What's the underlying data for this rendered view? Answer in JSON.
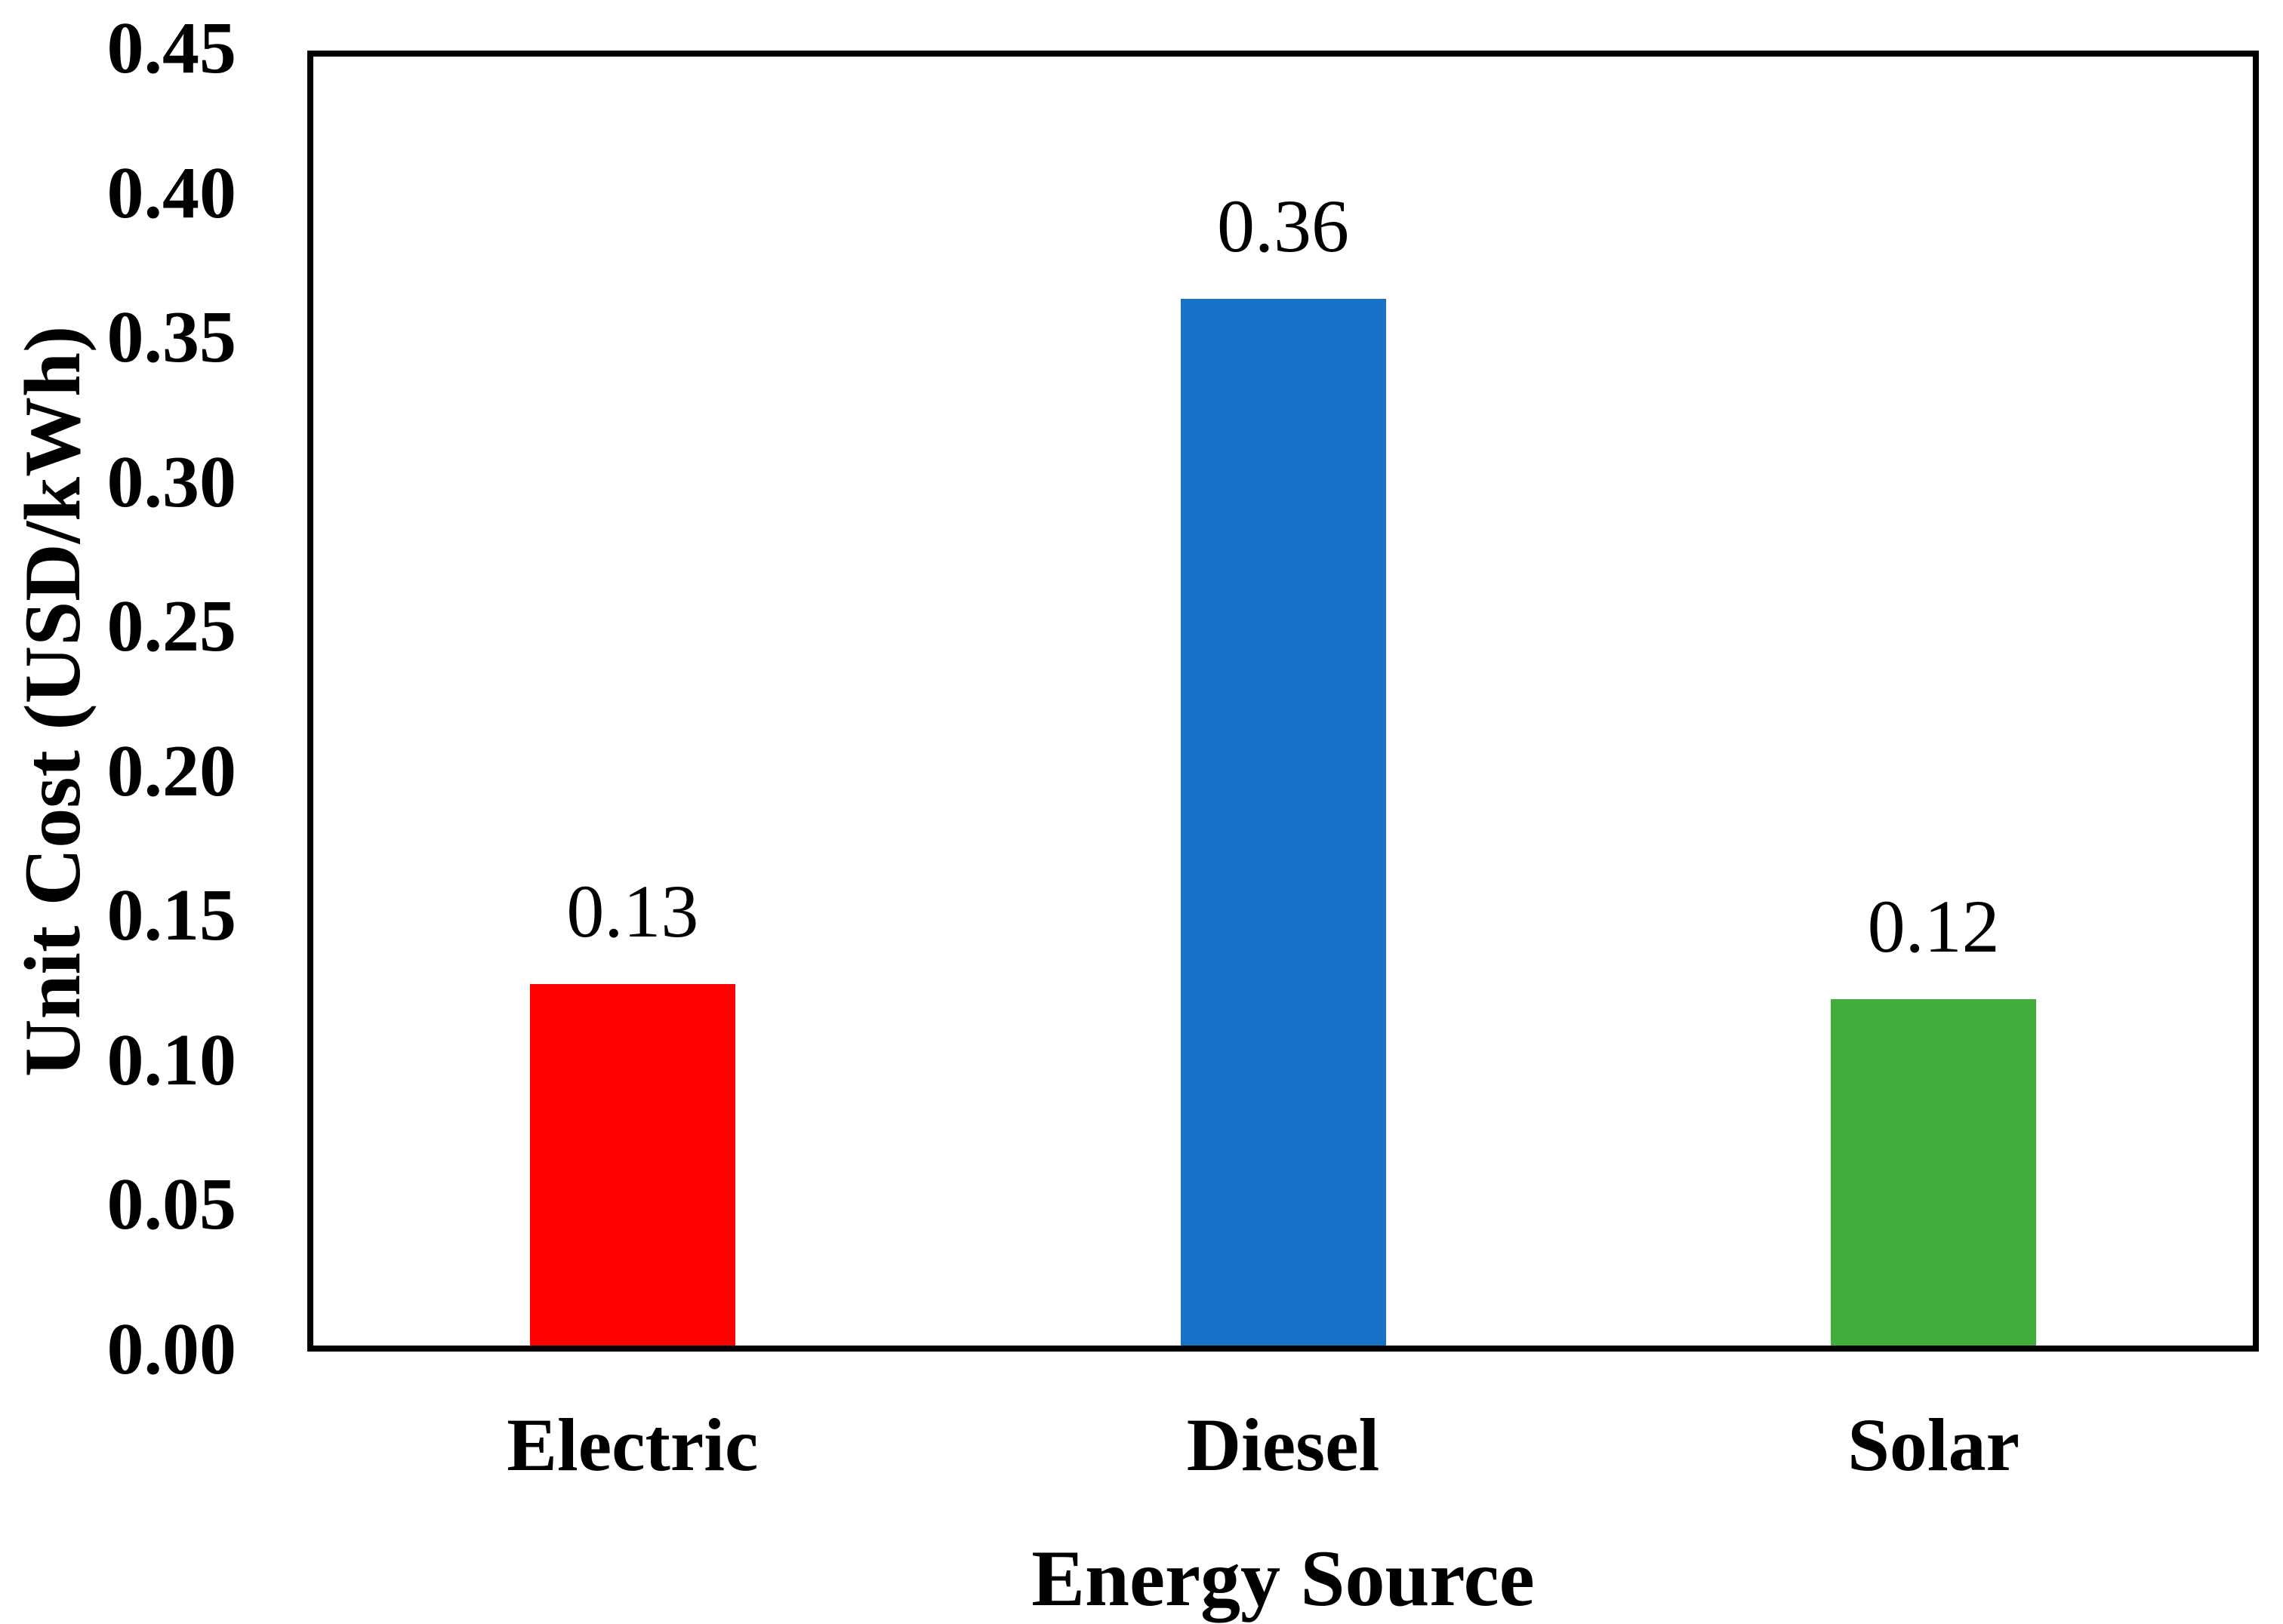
{
  "chart_data": {
    "type": "bar",
    "title": "",
    "categories": [
      "Electric",
      "Diesel",
      "Solar"
    ],
    "values": [
      0.13,
      0.36,
      0.12
    ],
    "value_labels": [
      "0.13",
      "0.36",
      "0.12"
    ],
    "bar_values_precise": [
      0.127,
      0.364,
      0.122
    ],
    "bar_colors": [
      "#FF0000",
      "#1772C8",
      "#41AE3C"
    ],
    "xlabel": "Energy Source",
    "ylabel": "Unit Cost (USD/kWh)",
    "ylim": [
      0,
      0.45
    ],
    "ytick_interval": 0.05,
    "ytick_labels": [
      "0.00",
      "0.05",
      "0.10",
      "0.15",
      "0.20",
      "0.25",
      "0.30",
      "0.35",
      "0.40",
      "0.45"
    ],
    "grid": false,
    "legend": false,
    "frame": "box",
    "text_color": "#000000",
    "background": "#FFFFFF"
  }
}
